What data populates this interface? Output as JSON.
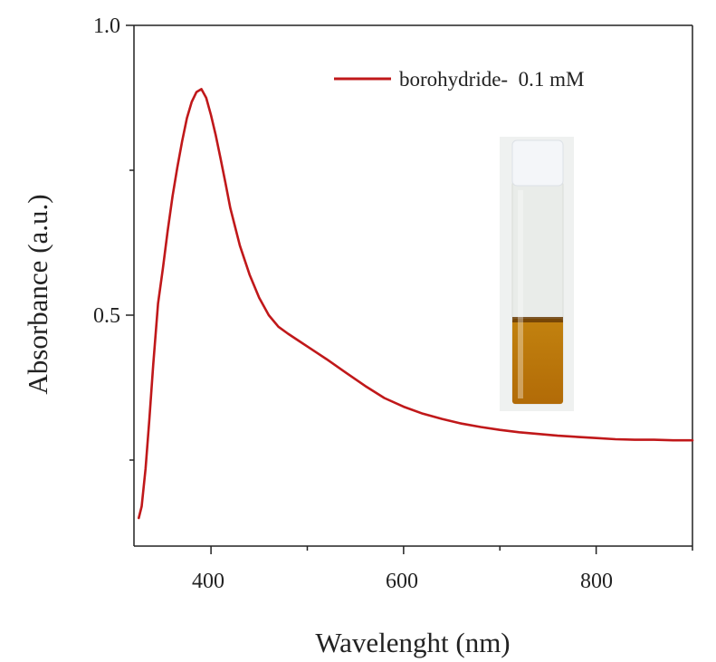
{
  "chart_data": {
    "type": "line",
    "title": "",
    "xlabel": "Wavelenght (nm)",
    "ylabel": "Absorbance (a.u.)",
    "xlim": [
      320,
      900
    ],
    "ylim": [
      0.1,
      1.0
    ],
    "xticks": [
      400,
      600,
      800
    ],
    "xtick_labels": [
      "400",
      "600",
      "800"
    ],
    "yticks": [
      0.5,
      1.0
    ],
    "ytick_labels": [
      "0.5",
      "1.0"
    ],
    "grid": false,
    "legend_position": "top-right",
    "series": [
      {
        "name": "borohydride-  0.1 mM",
        "color": "#c0181a",
        "x": [
          325,
          328,
          332,
          336,
          340,
          345,
          350,
          355,
          360,
          365,
          370,
          375,
          380,
          385,
          390,
          395,
          400,
          405,
          410,
          415,
          420,
          430,
          440,
          450,
          460,
          470,
          480,
          490,
          500,
          510,
          520,
          540,
          560,
          580,
          600,
          620,
          640,
          660,
          680,
          700,
          720,
          740,
          760,
          780,
          800,
          820,
          840,
          860,
          880,
          900
        ],
        "values": [
          0.15,
          0.17,
          0.235,
          0.32,
          0.415,
          0.52,
          0.58,
          0.645,
          0.705,
          0.755,
          0.8,
          0.84,
          0.868,
          0.885,
          0.89,
          0.875,
          0.845,
          0.81,
          0.77,
          0.728,
          0.685,
          0.62,
          0.57,
          0.53,
          0.5,
          0.48,
          0.468,
          0.457,
          0.446,
          0.435,
          0.424,
          0.401,
          0.378,
          0.357,
          0.342,
          0.33,
          0.321,
          0.313,
          0.307,
          0.302,
          0.298,
          0.295,
          0.292,
          0.29,
          0.288,
          0.286,
          0.285,
          0.285,
          0.284,
          0.284
        ]
      }
    ]
  },
  "inset": {
    "subject": "vial-photo",
    "cap_color": "#f4f6f9",
    "glass_color": "#e9ece9",
    "liquid_top_color": "#c2820f",
    "liquid_bottom_color": "#b26b07"
  }
}
